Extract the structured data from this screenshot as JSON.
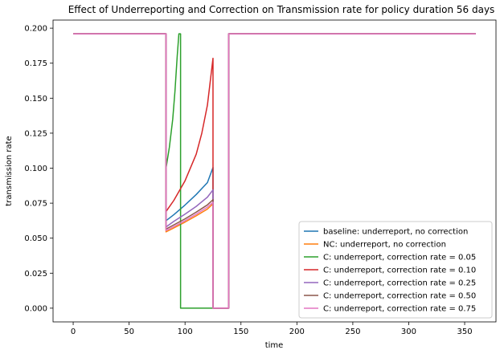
{
  "chart_data": {
    "type": "line",
    "title": "Effect of Underreporting and Correction on Transmission rate for policy duration 56 days",
    "xlabel": "time",
    "ylabel": "transmission rate",
    "xlim": [
      -18,
      378
    ],
    "ylim": [
      -0.0098,
      0.2058
    ],
    "xticks": [
      0,
      50,
      100,
      150,
      200,
      250,
      300,
      350
    ],
    "xtick_labels": [
      "0",
      "50",
      "100",
      "150",
      "200",
      "250",
      "300",
      "350"
    ],
    "yticks": [
      0.0,
      0.025,
      0.05,
      0.075,
      0.1,
      0.125,
      0.15,
      0.175,
      0.2
    ],
    "ytick_labels": [
      "0.000",
      "0.025",
      "0.050",
      "0.075",
      "0.100",
      "0.125",
      "0.150",
      "0.175",
      "0.200"
    ],
    "grid": false,
    "legend_position": "lower-right",
    "series": [
      {
        "name": "baseline: underreport, no correction",
        "color": "#1f77b4",
        "x": [
          0,
          83,
          83,
          90,
          100,
          110,
          120,
          125,
          125,
          139,
          139,
          360
        ],
        "y": [
          0.196,
          0.196,
          0.0625,
          0.0668,
          0.0737,
          0.0812,
          0.0897,
          0.1005,
          0.0,
          0.0,
          0.196,
          0.196
        ]
      },
      {
        "name": "NC: underreport, no correction",
        "color": "#ff7f0e",
        "x": [
          0,
          83,
          83,
          90,
          100,
          110,
          120,
          125,
          125,
          139,
          139,
          360
        ],
        "y": [
          0.196,
          0.196,
          0.0545,
          0.0573,
          0.0615,
          0.066,
          0.0708,
          0.0745,
          0.0,
          0.0,
          0.196,
          0.196
        ]
      },
      {
        "name": "C: underreport, correction rate = 0.05",
        "color": "#2ca02c",
        "x": [
          0,
          83,
          83,
          86,
          89,
          91,
          93,
          94.5,
          94.5,
          96,
          96,
          139,
          139,
          360
        ],
        "y": [
          0.196,
          0.196,
          0.1,
          0.115,
          0.135,
          0.155,
          0.18,
          0.196,
          0.196,
          0.196,
          0.0,
          0.0,
          0.196,
          0.196
        ]
      },
      {
        "name": "C: underreport, correction rate = 0.10",
        "color": "#d62728",
        "x": [
          0,
          83,
          83,
          90,
          100,
          110,
          115,
          120,
          125,
          125,
          139,
          139,
          360
        ],
        "y": [
          0.196,
          0.196,
          0.069,
          0.077,
          0.091,
          0.11,
          0.125,
          0.145,
          0.1785,
          0.0,
          0.0,
          0.196,
          0.196
        ]
      },
      {
        "name": "C: underreport, correction rate = 0.25",
        "color": "#9467bd",
        "x": [
          0,
          83,
          83,
          90,
          100,
          110,
          120,
          125,
          125,
          139,
          139,
          360
        ],
        "y": [
          0.196,
          0.196,
          0.058,
          0.062,
          0.0672,
          0.0727,
          0.0793,
          0.0845,
          0.0,
          0.0,
          0.196,
          0.196
        ]
      },
      {
        "name": "C: underreport, correction rate = 0.50",
        "color": "#8c564b",
        "x": [
          0,
          83,
          83,
          90,
          100,
          110,
          120,
          125,
          125,
          139,
          139,
          360
        ],
        "y": [
          0.196,
          0.196,
          0.0565,
          0.0595,
          0.0638,
          0.0686,
          0.0738,
          0.0775,
          0.0,
          0.0,
          0.196,
          0.196
        ]
      },
      {
        "name": "C: underreport, correction rate = 0.75",
        "color": "#e377c2",
        "x": [
          0,
          83,
          83,
          90,
          100,
          110,
          120,
          125,
          125,
          139,
          139,
          360
        ],
        "y": [
          0.196,
          0.196,
          0.0555,
          0.0583,
          0.0625,
          0.0672,
          0.0722,
          0.0757,
          0.0,
          0.0,
          0.196,
          0.196
        ]
      }
    ]
  }
}
